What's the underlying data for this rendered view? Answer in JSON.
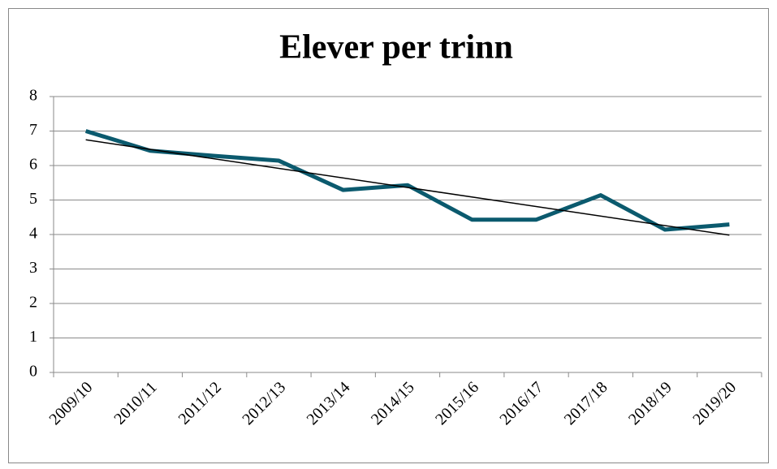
{
  "chart_data": {
    "type": "line",
    "title": "Elever per trinn",
    "categories": [
      "2009/10",
      "2010/11",
      "2011/12",
      "2012/13",
      "2013/14",
      "2014/15",
      "2015/16",
      "2016/17",
      "2017/18",
      "2018/19",
      "2019/20"
    ],
    "series": [
      {
        "color": "#0b5a6e",
        "values": [
          7.0,
          6.43,
          6.28,
          6.14,
          5.29,
          5.43,
          4.43,
          4.43,
          5.14,
          4.14,
          4.29
        ]
      }
    ],
    "trendline": "linear",
    "trendline_color": "#000000",
    "ylim": [
      0,
      8
    ],
    "yticks": [
      0,
      1,
      2,
      3,
      4,
      5,
      6,
      7,
      8
    ],
    "grid": true
  }
}
